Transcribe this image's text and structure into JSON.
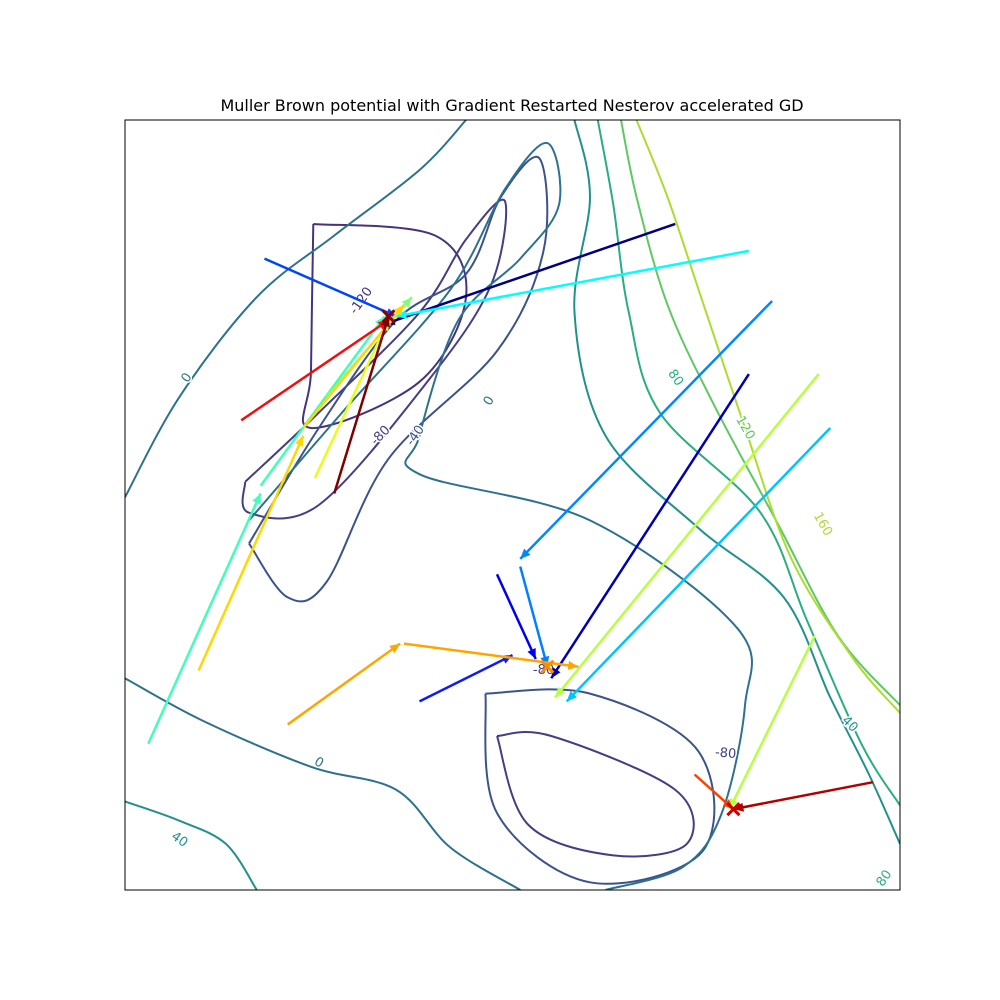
{
  "chart_data": {
    "type": "line",
    "title": "Muller Brown potential with Gradient Restarted Nesterov accelerated GD",
    "xlabel": "",
    "ylabel": "",
    "xlim": [
      0,
      1
    ],
    "ylim": [
      0,
      1
    ],
    "ticks_visible": false,
    "grid": false,
    "contours": [
      {
        "level": "-120",
        "color": "#46327e",
        "points": [
          [
            0.243,
            0.865
          ],
          [
            0.4,
            0.85
          ],
          [
            0.44,
            0.77
          ],
          [
            0.38,
            0.66
          ],
          [
            0.24,
            0.6
          ],
          [
            0.24,
            0.675
          ],
          [
            0.243,
            0.865
          ]
        ]
      },
      {
        "level": "-80",
        "color": "#433e85",
        "points": [
          [
            0.155,
            0.53
          ],
          [
            0.25,
            0.62
          ],
          [
            0.38,
            0.75
          ],
          [
            0.44,
            0.845
          ],
          [
            0.49,
            0.895
          ],
          [
            0.472,
            0.785
          ],
          [
            0.39,
            0.66
          ],
          [
            0.25,
            0.5
          ],
          [
            0.16,
            0.49
          ],
          [
            0.155,
            0.53
          ]
        ]
      },
      {
        "level": "-80",
        "color": "#433e85",
        "points": [
          [
            0.48,
            0.2
          ],
          [
            0.55,
            0.2
          ],
          [
            0.71,
            0.13
          ],
          [
            0.725,
            0.06
          ],
          [
            0.63,
            0.045
          ],
          [
            0.52,
            0.085
          ],
          [
            0.48,
            0.2
          ]
        ]
      },
      {
        "level": "-40",
        "color": "#3b528b",
        "points": [
          [
            0.16,
            0.45
          ],
          [
            0.25,
            0.6
          ],
          [
            0.35,
            0.74
          ],
          [
            0.44,
            0.8
          ],
          [
            0.485,
            0.9
          ],
          [
            0.535,
            0.95
          ],
          [
            0.54,
            0.83
          ],
          [
            0.48,
            0.7
          ],
          [
            0.34,
            0.56
          ],
          [
            0.26,
            0.4
          ],
          [
            0.21,
            0.38
          ],
          [
            0.16,
            0.45
          ]
        ]
      },
      {
        "level": "-40",
        "color": "#3b528b",
        "points": [
          [
            0.465,
            0.255
          ],
          [
            0.6,
            0.255
          ],
          [
            0.74,
            0.18
          ],
          [
            0.745,
            0.05
          ],
          [
            0.6,
            0.01
          ],
          [
            0.48,
            0.1
          ],
          [
            0.465,
            0.255
          ]
        ]
      },
      {
        "level": "0",
        "color": "#2c728e",
        "points": [
          [
            0.0,
            0.51
          ],
          [
            0.07,
            0.64
          ],
          [
            0.17,
            0.77
          ],
          [
            0.27,
            0.85
          ],
          [
            0.38,
            0.935
          ],
          [
            0.44,
            1.0
          ]
        ]
      },
      {
        "level": "0",
        "color": "#2c728e",
        "points": [
          [
            0.16,
            0.48
          ],
          [
            0.28,
            0.62
          ],
          [
            0.42,
            0.78
          ],
          [
            0.49,
            0.91
          ],
          [
            0.545,
            0.97
          ],
          [
            0.56,
            0.89
          ],
          [
            0.51,
            0.82
          ],
          [
            0.43,
            0.74
          ],
          [
            0.38,
            0.59
          ],
          [
            0.38,
            0.54
          ],
          [
            0.6,
            0.48
          ],
          [
            0.79,
            0.34
          ],
          [
            0.8,
            0.24
          ],
          [
            0.77,
            0.1
          ],
          [
            0.72,
            0.03
          ],
          [
            0.62,
            0.0
          ]
        ]
      },
      {
        "level": "0",
        "color": "#2c728e",
        "points": [
          [
            0.0,
            0.275
          ],
          [
            0.1,
            0.22
          ],
          [
            0.24,
            0.16
          ],
          [
            0.35,
            0.13
          ],
          [
            0.42,
            0.055
          ],
          [
            0.51,
            0.0
          ]
        ]
      },
      {
        "level": "40",
        "color": "#21918c",
        "points": [
          [
            0.0,
            0.115
          ],
          [
            0.07,
            0.09
          ],
          [
            0.13,
            0.06
          ],
          [
            0.17,
            0.0
          ]
        ]
      },
      {
        "level": "40",
        "color": "#21918c",
        "points": [
          [
            0.58,
            1.0
          ],
          [
            0.6,
            0.9
          ],
          [
            0.58,
            0.75
          ],
          [
            0.62,
            0.59
          ],
          [
            0.74,
            0.47
          ],
          [
            0.85,
            0.38
          ],
          [
            0.91,
            0.25
          ],
          [
            0.96,
            0.15
          ],
          [
            1.0,
            0.06
          ]
        ]
      },
      {
        "level": "80",
        "color": "#28ae80",
        "points": [
          [
            0.61,
            1.0
          ],
          [
            0.63,
            0.89
          ],
          [
            0.65,
            0.75
          ],
          [
            0.69,
            0.62
          ],
          [
            0.82,
            0.49
          ],
          [
            0.88,
            0.35
          ],
          [
            0.95,
            0.19
          ],
          [
            1.0,
            0.11
          ]
        ]
      },
      {
        "level": "120",
        "color": "#5ec962",
        "points": [
          [
            0.64,
            1.0
          ],
          [
            0.66,
            0.9
          ],
          [
            0.7,
            0.76
          ],
          [
            0.76,
            0.63
          ],
          [
            0.84,
            0.48
          ],
          [
            0.92,
            0.33
          ],
          [
            1.0,
            0.24
          ]
        ]
      },
      {
        "level": "160",
        "color": "#addc30",
        "points": [
          [
            0.66,
            1.0
          ],
          [
            0.7,
            0.9
          ],
          [
            0.74,
            0.78
          ],
          [
            0.8,
            0.6
          ],
          [
            0.86,
            0.43
          ],
          [
            0.94,
            0.3
          ],
          [
            1.0,
            0.23
          ]
        ]
      }
    ],
    "contour_labels": [
      {
        "text": "-120",
        "x": 0.305,
        "y": 0.765,
        "angle": -55,
        "color": "#46327e"
      },
      {
        "text": "-80",
        "x": 0.33,
        "y": 0.59,
        "angle": -45,
        "color": "#433e85"
      },
      {
        "text": "-40",
        "x": 0.375,
        "y": 0.59,
        "angle": -55,
        "color": "#3b528b"
      },
      {
        "text": "0",
        "x": 0.08,
        "y": 0.665,
        "angle": -55,
        "color": "#2c728e"
      },
      {
        "text": "0",
        "x": 0.47,
        "y": 0.635,
        "angle": -60,
        "color": "#2c728e"
      },
      {
        "text": "0",
        "x": 0.25,
        "y": 0.165,
        "angle": 30,
        "color": "#2c728e"
      },
      {
        "text": "80",
        "x": 0.71,
        "y": 0.665,
        "angle": 55,
        "color": "#28ae80"
      },
      {
        "text": "120",
        "x": 0.8,
        "y": 0.6,
        "angle": 60,
        "color": "#5ec962"
      },
      {
        "text": "160",
        "x": 0.9,
        "y": 0.475,
        "angle": 60,
        "color": "#addc30"
      },
      {
        "text": "-80",
        "x": 0.775,
        "y": 0.177,
        "angle": 5,
        "color": "#433e85"
      },
      {
        "text": "40",
        "x": 0.935,
        "y": 0.215,
        "angle": 45,
        "color": "#21918c"
      },
      {
        "text": "40",
        "x": 0.07,
        "y": 0.065,
        "angle": 35,
        "color": "#21918c"
      },
      {
        "text": "80",
        "x": 0.98,
        "y": 0.015,
        "angle": -55,
        "color": "#28ae80"
      },
      {
        "text": "-80",
        "x": 0.54,
        "y": 0.285,
        "angle": 0,
        "color": "#433e85"
      }
    ],
    "series": [
      {
        "color": "#000080",
        "x": [
          0.71,
          0.335
        ],
        "y": [
          0.865,
          0.735
        ]
      },
      {
        "color": "#0000b2",
        "x": [
          0.805,
          0.55
        ],
        "y": [
          0.67,
          0.275
        ]
      },
      {
        "color": "#0000f1",
        "x": [
          0.48,
          0.53
        ],
        "y": [
          0.41,
          0.3
        ]
      },
      {
        "color": "#0d1aff",
        "x": [
          0.38,
          0.5
        ],
        "y": [
          0.245,
          0.305
        ]
      },
      {
        "color": "#0044ff",
        "x": [
          0.18,
          0.35
        ],
        "y": [
          0.82,
          0.745
        ]
      },
      {
        "color": "#0088ff",
        "x": [
          0.835,
          0.51
        ],
        "y": [
          0.765,
          0.43
        ]
      },
      {
        "color": "#0080ff",
        "x": [
          0.51,
          0.545
        ],
        "y": [
          0.42,
          0.29
        ]
      },
      {
        "color": "#00c4ff",
        "x": [
          0.91,
          0.57
        ],
        "y": [
          0.6,
          0.245
        ]
      },
      {
        "color": "#00ffff",
        "x": [
          0.805,
          0.35
        ],
        "y": [
          0.83,
          0.745
        ]
      },
      {
        "color": "#40ffb7",
        "x": [
          0.03,
          0.175
        ],
        "y": [
          0.19,
          0.515
        ]
      },
      {
        "color": "#40ffb7",
        "x": [
          0.175,
          0.335
        ],
        "y": [
          0.525,
          0.745
        ]
      },
      {
        "color": "#7dff7a",
        "x": [
          0.26,
          0.37
        ],
        "y": [
          0.64,
          0.77
        ]
      },
      {
        "color": "#b7ff40",
        "x": [
          0.89,
          0.78
        ],
        "y": [
          0.33,
          0.105
        ]
      },
      {
        "color": "#b7ff40",
        "x": [
          0.895,
          0.555
        ],
        "y": [
          0.67,
          0.25
        ]
      },
      {
        "color": "#e6ff19",
        "x": [
          0.245,
          0.34
        ],
        "y": [
          0.535,
          0.74
        ]
      },
      {
        "color": "#ffd700",
        "x": [
          0.095,
          0.23
        ],
        "y": [
          0.285,
          0.59
        ]
      },
      {
        "color": "#ffd700",
        "x": [
          0.23,
          0.36
        ],
        "y": [
          0.6,
          0.76
        ]
      },
      {
        "color": "#ffa500",
        "x": [
          0.21,
          0.355
        ],
        "y": [
          0.215,
          0.32
        ]
      },
      {
        "color": "#ffa500",
        "x": [
          0.36,
          0.585
        ],
        "y": [
          0.32,
          0.29
        ]
      },
      {
        "color": "#ff4000",
        "x": [
          0.735,
          0.785
        ],
        "y": [
          0.15,
          0.105
        ]
      },
      {
        "color": "#ee1010",
        "x": [
          0.15,
          0.34
        ],
        "y": [
          0.61,
          0.74
        ]
      },
      {
        "color": "#b20000",
        "x": [
          0.965,
          0.785
        ],
        "y": [
          0.14,
          0.105
        ]
      },
      {
        "color": "#800000",
        "x": [
          0.27,
          0.34
        ],
        "y": [
          0.515,
          0.745
        ]
      }
    ],
    "minima_markers": [
      {
        "x": 0.34,
        "y": 0.745,
        "color": "#8b0000"
      },
      {
        "x": 0.785,
        "y": 0.105,
        "color": "#c80000"
      },
      {
        "x": 0.545,
        "y": 0.29,
        "color": "#ff8c00"
      }
    ]
  }
}
